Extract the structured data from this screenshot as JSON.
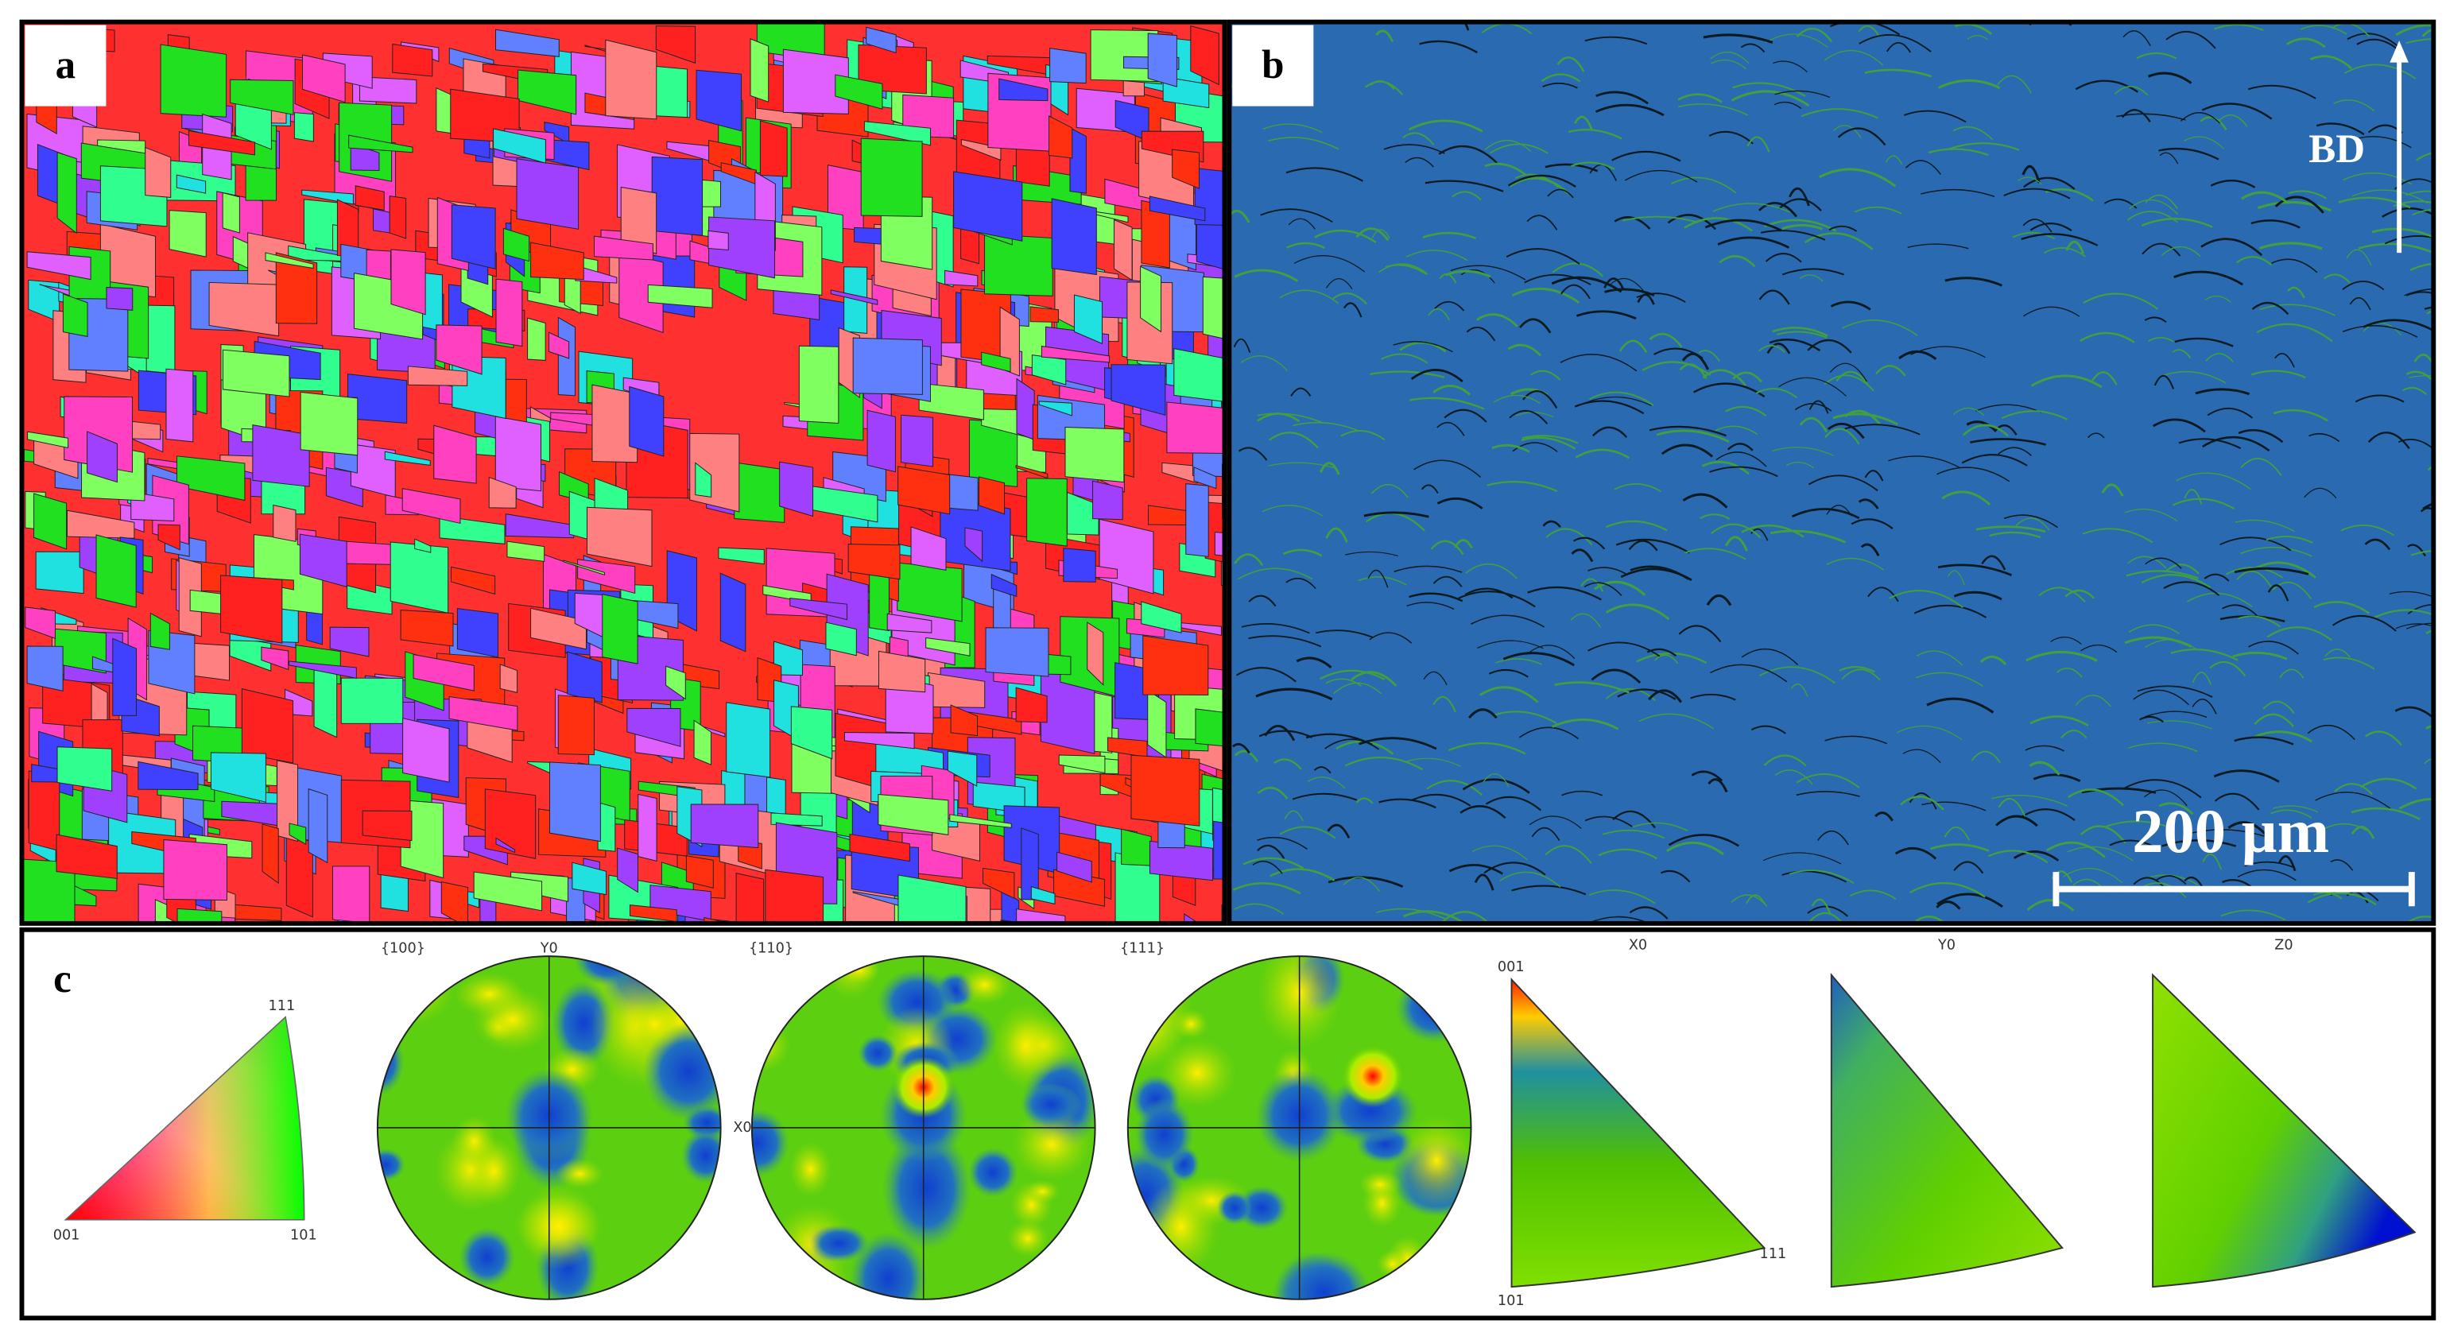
{
  "panels": {
    "a": {
      "label": "a"
    },
    "b": {
      "label": "b",
      "direction": "BD",
      "scale_bar": "200 µm"
    },
    "c": {
      "label": "c",
      "color_key": {
        "corners": [
          "111",
          "001",
          "101"
        ]
      },
      "pole_figures": [
        {
          "title": "{100}",
          "top_axis": "Y0",
          "right_axis": "X0"
        },
        {
          "title": "{110}"
        },
        {
          "title": "{111}"
        }
      ],
      "inverse_pole_figures": [
        {
          "title": "X0",
          "corners": [
            "001",
            "111",
            "101"
          ]
        },
        {
          "title": "Y0"
        },
        {
          "title": "Z0"
        }
      ]
    }
  }
}
